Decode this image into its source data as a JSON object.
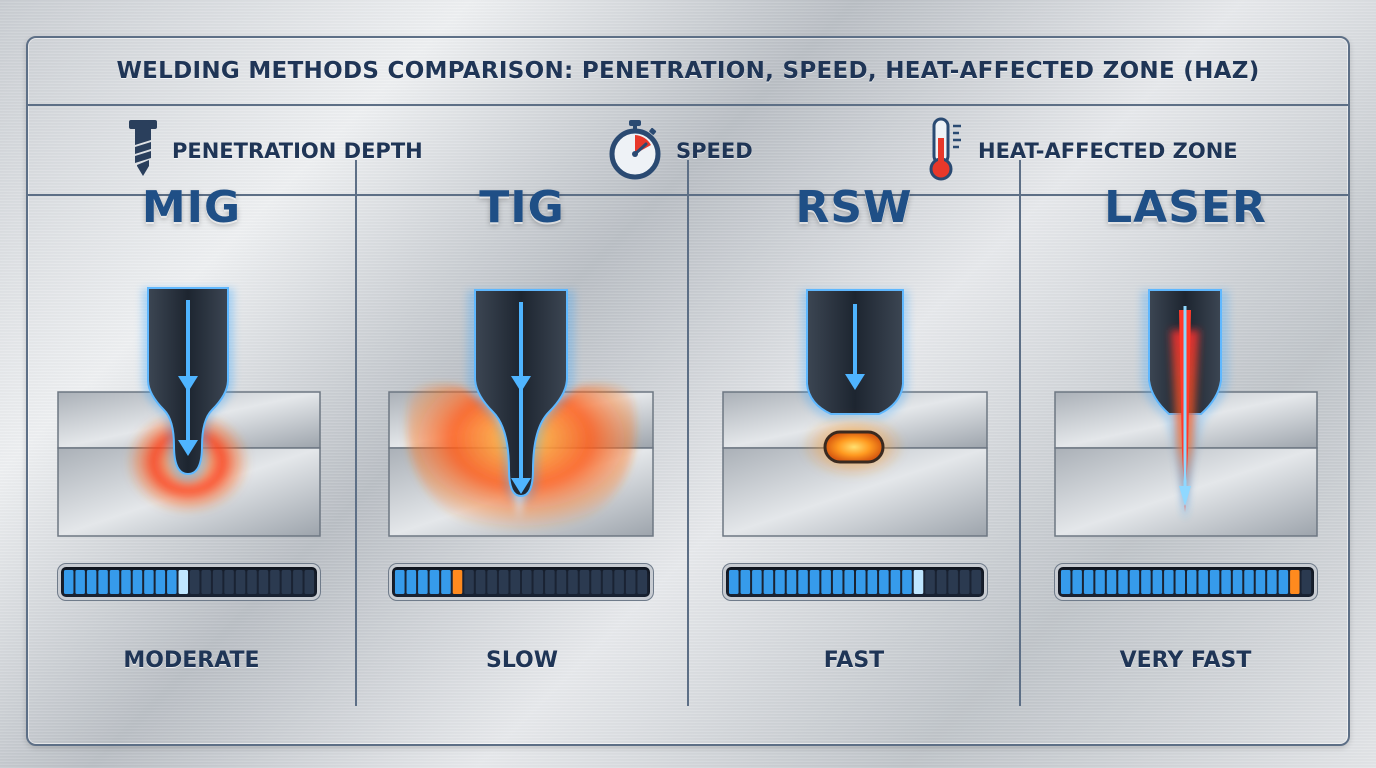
{
  "title": "WELDING METHODS COMPARISON: PENETRATION, SPEED, HEAT-AFFECTED ZONE (HAZ)",
  "legend": [
    {
      "label": "PENETRATION DEPTH",
      "icon": "drill-bit-icon"
    },
    {
      "label": "SPEED",
      "icon": "stopwatch-icon"
    },
    {
      "label": "HEAT-AFFECTED ZONE",
      "icon": "thermometer-icon"
    }
  ],
  "colors": {
    "accent": "#1f4f86",
    "speed_fill": "#3aa8ff",
    "speed_marker": "#ff8a1e",
    "heat": "#ff5a1e"
  },
  "methods": [
    {
      "name": "MIG",
      "speed_label": "MODERATE",
      "speed_level": 0.52,
      "marker": "blue"
    },
    {
      "name": "TIG",
      "speed_label": "SLOW",
      "speed_level": 0.28,
      "marker": "orange"
    },
    {
      "name": "RSW",
      "speed_label": "FAST",
      "speed_level": 0.75,
      "marker": "blue"
    },
    {
      "name": "LASER",
      "speed_label": "VERY FAST",
      "speed_level": 0.97,
      "marker": "orange"
    }
  ]
}
